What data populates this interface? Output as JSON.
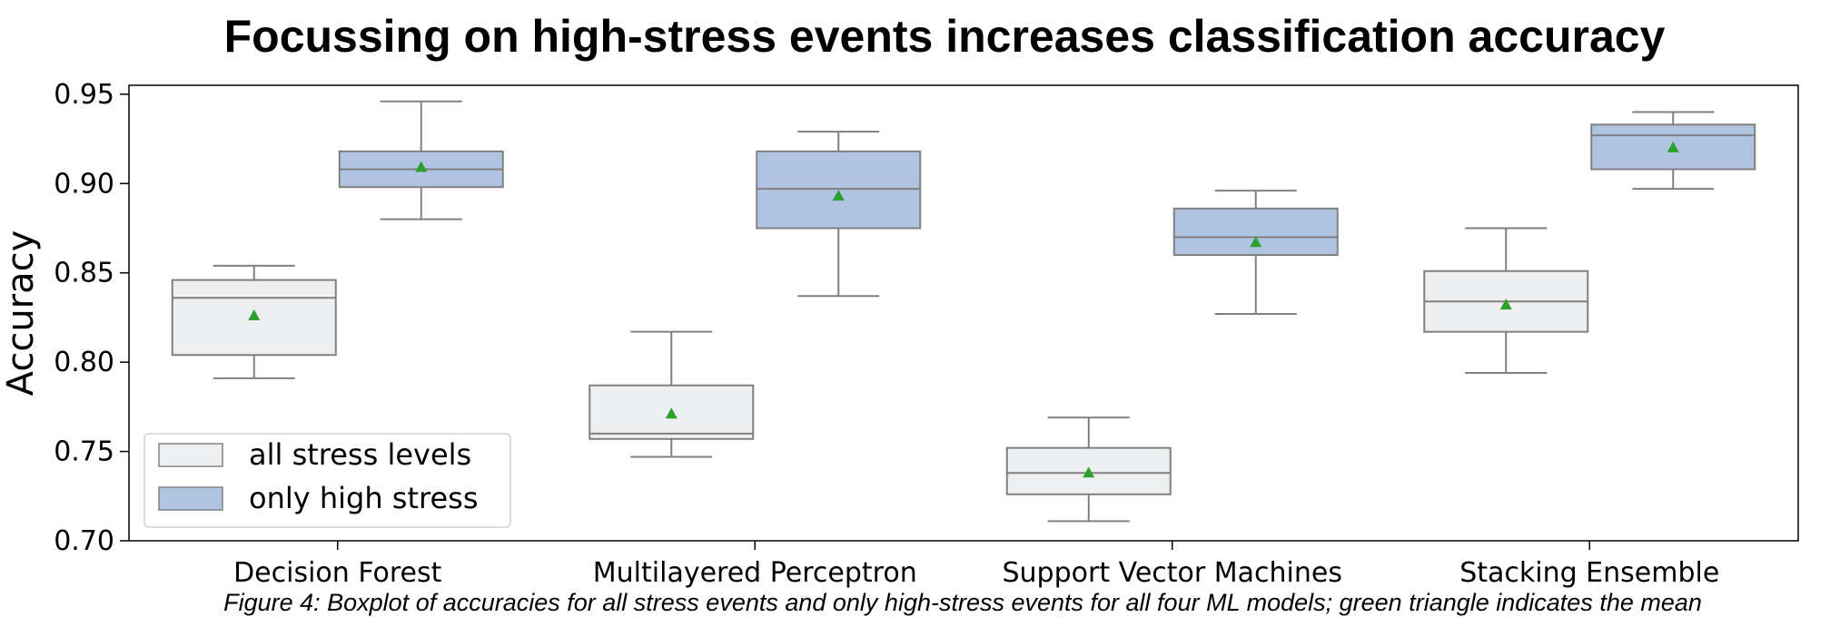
{
  "chart_data": {
    "type": "boxplot",
    "title": "Focussing on high-stress events increases classification accuracy",
    "xlabel": "",
    "ylabel": "Accuracy",
    "ylim": [
      0.7,
      0.955
    ],
    "yticks": [
      "0.70",
      "0.75",
      "0.80",
      "0.85",
      "0.90",
      "0.95"
    ],
    "categories": [
      "Decision Forest",
      "Multilayered Perceptron",
      "Support Vector Machines",
      "Stacking Ensemble"
    ],
    "legend_position": "bottom-left",
    "grid": false,
    "series": [
      {
        "name": "all stress levels",
        "color": "#eeeff0",
        "boxes": [
          {
            "whisker_low": 0.791,
            "q1": 0.804,
            "median": 0.836,
            "q3": 0.846,
            "whisker_high": 0.854,
            "mean": 0.826
          },
          {
            "whisker_low": 0.747,
            "q1": 0.757,
            "median": 0.76,
            "q3": 0.787,
            "whisker_high": 0.817,
            "mean": 0.771
          },
          {
            "whisker_low": 0.711,
            "q1": 0.726,
            "median": 0.738,
            "q3": 0.752,
            "whisker_high": 0.769,
            "mean": 0.738
          },
          {
            "whisker_low": 0.794,
            "q1": 0.817,
            "median": 0.834,
            "q3": 0.851,
            "whisker_high": 0.875,
            "mean": 0.832
          }
        ]
      },
      {
        "name": "only high stress",
        "color": "#b0c4e2",
        "boxes": [
          {
            "whisker_low": 0.88,
            "q1": 0.898,
            "median": 0.908,
            "q3": 0.918,
            "whisker_high": 0.946,
            "mean": 0.909
          },
          {
            "whisker_low": 0.837,
            "q1": 0.875,
            "median": 0.897,
            "q3": 0.918,
            "whisker_high": 0.929,
            "mean": 0.893
          },
          {
            "whisker_low": 0.827,
            "q1": 0.86,
            "median": 0.87,
            "q3": 0.886,
            "whisker_high": 0.896,
            "mean": 0.867
          },
          {
            "whisker_low": 0.897,
            "q1": 0.908,
            "median": 0.927,
            "q3": 0.933,
            "whisker_high": 0.94,
            "mean": 0.92
          }
        ]
      }
    ],
    "mean_marker_color": "#2ca02c",
    "box_edge_color": "#808080"
  },
  "caption": "Figure 4: Boxplot of accuracies for all stress events and only high-stress events for all four ML models; green triangle indicates the mean"
}
